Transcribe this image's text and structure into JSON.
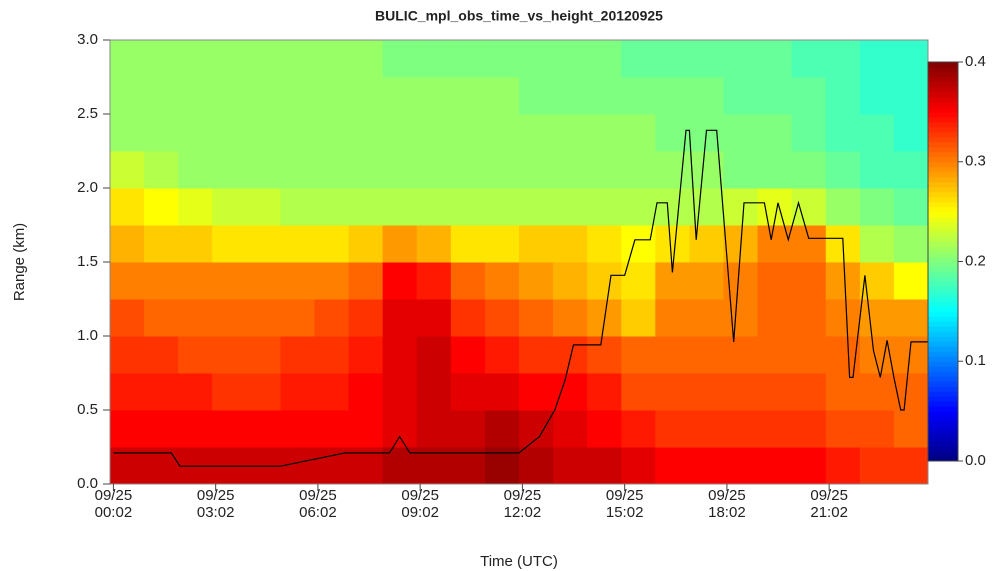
{
  "chart_data": {
    "type": "heatmap",
    "title": "BULIC_mpl_obs_time_vs_height_20120925",
    "xlabel": "Time (UTC)",
    "ylabel": "Range (km)",
    "xlim": [
      -0.1,
      23.9
    ],
    "ylim": [
      0,
      3
    ],
    "xticks": [
      {
        "value": 0,
        "label": "09/25\n00:02"
      },
      {
        "value": 3,
        "label": "09/25\n03:02"
      },
      {
        "value": 6,
        "label": "09/25\n06:02"
      },
      {
        "value": 9,
        "label": "09/25\n09:02"
      },
      {
        "value": 12,
        "label": "09/25\n12:02"
      },
      {
        "value": 15,
        "label": "09/25\n15:02"
      },
      {
        "value": 18,
        "label": "09/25\n18:02"
      },
      {
        "value": 21,
        "label": "09/25\n21:02"
      }
    ],
    "yticks": [
      {
        "value": 0,
        "label": "0.0"
      },
      0.5,
      {
        "value": 1,
        "label": "1.0"
      },
      1.5,
      {
        "value": 2,
        "label": "2.0"
      },
      2.5,
      {
        "value": 3,
        "label": "3.0"
      }
    ],
    "zlim": [
      0,
      0.4
    ],
    "zticks": [
      {
        "value": 0,
        "label": "0.0"
      },
      0.1,
      0.2,
      0.3,
      0.4
    ],
    "colors": [
      "#00007f",
      "#0000ff",
      "#007fff",
      "#00ffff",
      "#7fff7f",
      "#ffff00",
      "#ff7f00",
      "#ff0000",
      "#7f0000"
    ],
    "x_bins": [
      -0.1,
      0.9,
      1.9,
      2.9,
      3.9,
      4.9,
      5.9,
      6.9,
      7.9,
      8.9,
      9.9,
      10.9,
      11.9,
      12.9,
      13.9,
      14.9,
      15.9,
      16.9,
      17.9,
      18.9,
      19.9,
      20.9,
      21.9,
      22.9,
      23.9
    ],
    "y_bins": [
      0,
      0.25,
      0.5,
      0.75,
      1,
      1.25,
      1.5,
      1.75,
      2,
      2.25,
      2.5,
      2.75,
      3
    ],
    "z": [
      [
        0.37,
        0.37,
        0.37,
        0.37,
        0.37,
        0.37,
        0.37,
        0.37,
        0.38,
        0.38,
        0.38,
        0.39,
        0.38,
        0.37,
        0.37,
        0.36,
        0.35,
        0.35,
        0.35,
        0.35,
        0.35,
        0.34,
        0.33,
        0.33
      ],
      [
        0.35,
        0.35,
        0.35,
        0.35,
        0.35,
        0.35,
        0.35,
        0.35,
        0.36,
        0.37,
        0.37,
        0.38,
        0.37,
        0.36,
        0.35,
        0.34,
        0.33,
        0.33,
        0.33,
        0.33,
        0.33,
        0.32,
        0.32,
        0.31
      ],
      [
        0.34,
        0.34,
        0.34,
        0.33,
        0.33,
        0.34,
        0.34,
        0.35,
        0.36,
        0.37,
        0.36,
        0.36,
        0.35,
        0.35,
        0.34,
        0.32,
        0.32,
        0.32,
        0.32,
        0.32,
        0.32,
        0.31,
        0.31,
        0.31
      ],
      [
        0.33,
        0.33,
        0.32,
        0.32,
        0.32,
        0.33,
        0.33,
        0.34,
        0.36,
        0.37,
        0.35,
        0.34,
        0.33,
        0.33,
        0.32,
        0.31,
        0.31,
        0.31,
        0.31,
        0.31,
        0.31,
        0.31,
        0.3,
        0.3
      ],
      [
        0.32,
        0.31,
        0.31,
        0.31,
        0.31,
        0.31,
        0.32,
        0.33,
        0.36,
        0.36,
        0.33,
        0.32,
        0.31,
        0.3,
        0.29,
        0.27,
        0.3,
        0.3,
        0.3,
        0.31,
        0.31,
        0.3,
        0.29,
        0.29
      ],
      [
        0.3,
        0.3,
        0.3,
        0.3,
        0.3,
        0.3,
        0.3,
        0.31,
        0.35,
        0.34,
        0.31,
        0.3,
        0.29,
        0.28,
        0.27,
        0.26,
        0.29,
        0.29,
        0.3,
        0.31,
        0.31,
        0.29,
        0.27,
        0.25
      ],
      [
        0.28,
        0.27,
        0.27,
        0.26,
        0.26,
        0.26,
        0.26,
        0.27,
        0.29,
        0.28,
        0.26,
        0.26,
        0.27,
        0.27,
        0.26,
        0.25,
        0.26,
        0.27,
        0.28,
        0.3,
        0.3,
        0.26,
        0.22,
        0.21
      ],
      [
        0.26,
        0.25,
        0.24,
        0.23,
        0.23,
        0.22,
        0.22,
        0.22,
        0.22,
        0.22,
        0.22,
        0.22,
        0.22,
        0.22,
        0.22,
        0.22,
        0.22,
        0.22,
        0.23,
        0.24,
        0.23,
        0.21,
        0.2,
        0.19
      ],
      [
        0.23,
        0.22,
        0.21,
        0.21,
        0.21,
        0.21,
        0.21,
        0.21,
        0.21,
        0.21,
        0.21,
        0.21,
        0.21,
        0.21,
        0.21,
        0.21,
        0.21,
        0.21,
        0.2,
        0.2,
        0.2,
        0.19,
        0.18,
        0.18
      ],
      [
        0.21,
        0.21,
        0.21,
        0.21,
        0.21,
        0.21,
        0.21,
        0.21,
        0.21,
        0.21,
        0.21,
        0.21,
        0.21,
        0.21,
        0.21,
        0.21,
        0.2,
        0.2,
        0.2,
        0.2,
        0.19,
        0.18,
        0.18,
        0.17
      ],
      [
        0.21,
        0.21,
        0.21,
        0.21,
        0.21,
        0.21,
        0.21,
        0.21,
        0.21,
        0.21,
        0.21,
        0.21,
        0.2,
        0.2,
        0.2,
        0.2,
        0.2,
        0.2,
        0.19,
        0.19,
        0.19,
        0.18,
        0.17,
        0.17
      ],
      [
        0.21,
        0.21,
        0.21,
        0.21,
        0.21,
        0.21,
        0.21,
        0.21,
        0.2,
        0.2,
        0.2,
        0.2,
        0.2,
        0.2,
        0.2,
        0.19,
        0.19,
        0.19,
        0.19,
        0.19,
        0.18,
        0.18,
        0.17,
        0.17
      ]
    ],
    "series": [
      {
        "color": "#000000",
        "x": [
          0,
          1.7,
          1.95,
          4.9,
          6.8,
          8.1,
          8.4,
          8.7,
          11.9,
          12.5,
          12.95,
          13.25,
          13.5,
          14.3,
          14.6,
          15.0,
          15.3,
          15.75,
          15.95,
          16.25,
          16.4,
          16.8,
          16.9,
          17.1,
          17.4,
          17.7,
          18.2,
          18.5,
          19.1,
          19.3,
          19.5,
          19.8,
          20.1,
          20.4,
          21.4,
          21.6,
          21.7,
          22.05,
          22.3,
          22.5,
          22.7,
          22.9,
          23.1,
          23.2,
          23.4,
          23.9
        ],
        "values": [
          0.21,
          0.21,
          0.12,
          0.12,
          0.21,
          0.21,
          0.32,
          0.21,
          0.21,
          0.32,
          0.5,
          0.7,
          0.94,
          0.94,
          1.41,
          1.41,
          1.65,
          1.65,
          1.9,
          1.9,
          1.43,
          2.39,
          2.39,
          1.65,
          2.39,
          2.39,
          0.96,
          1.9,
          1.9,
          1.65,
          1.9,
          1.65,
          1.9,
          1.66,
          1.66,
          0.72,
          0.72,
          1.41,
          0.9,
          0.72,
          0.97,
          0.72,
          0.5,
          0.5,
          0.96,
          0.96
        ]
      }
    ]
  }
}
